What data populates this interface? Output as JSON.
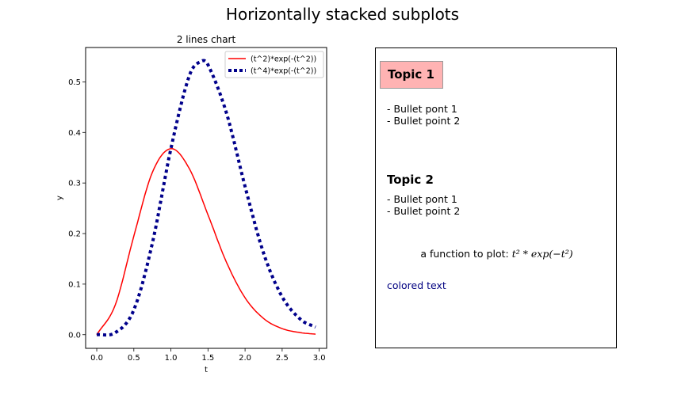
{
  "figure": {
    "suptitle": "Horizontally stacked subplots"
  },
  "chart_data": {
    "type": "line",
    "title": "2 lines chart",
    "xlabel": "t",
    "ylabel": "y",
    "xlim": [
      -0.15,
      3.1
    ],
    "ylim": [
      -0.027,
      0.568
    ],
    "xticks": [
      "0.0",
      "0.5",
      "1.0",
      "1.5",
      "2.0",
      "2.5",
      "3.0"
    ],
    "yticks": [
      "0.0",
      "0.1",
      "0.2",
      "0.3",
      "0.4",
      "0.5"
    ],
    "grid": false,
    "legend": "top-right",
    "series": [
      {
        "name": "(t^2)*exp(-(t^2))",
        "color": "#ff0000",
        "style": "solid",
        "x": [
          0.0,
          0.25,
          0.5,
          0.75,
          1.0,
          1.25,
          1.5,
          1.75,
          2.0,
          2.25,
          2.5,
          2.75,
          2.95
        ],
        "y": [
          0.0,
          0.059,
          0.195,
          0.321,
          0.368,
          0.328,
          0.237,
          0.143,
          0.073,
          0.032,
          0.012,
          0.004,
          0.001
        ]
      },
      {
        "name": "(t^4)*exp(-(t^2))",
        "color": "#00008b",
        "style": "dotted",
        "x": [
          0.0,
          0.25,
          0.5,
          0.75,
          1.0,
          1.25,
          1.414,
          1.5,
          1.75,
          2.0,
          2.25,
          2.5,
          2.75,
          2.95
        ],
        "y": [
          0.0,
          0.004,
          0.049,
          0.181,
          0.368,
          0.513,
          0.541,
          0.534,
          0.438,
          0.293,
          0.161,
          0.075,
          0.03,
          0.015
        ]
      }
    ]
  },
  "text_panel": {
    "topic1": "Topic 1",
    "topic1_bullets": [
      "- Bullet pont 1",
      "- Bullet point 2"
    ],
    "topic2": "Topic 2",
    "topic2_bullets": [
      "- Bullet pont 1",
      "- Bullet point 2"
    ],
    "function_prefix": "a function to plot: ",
    "function_math": "t² * exp(−t²)",
    "colored_text": "colored text",
    "colored_text_color": "#000080",
    "topic_box_color": "#ffb3b3"
  }
}
